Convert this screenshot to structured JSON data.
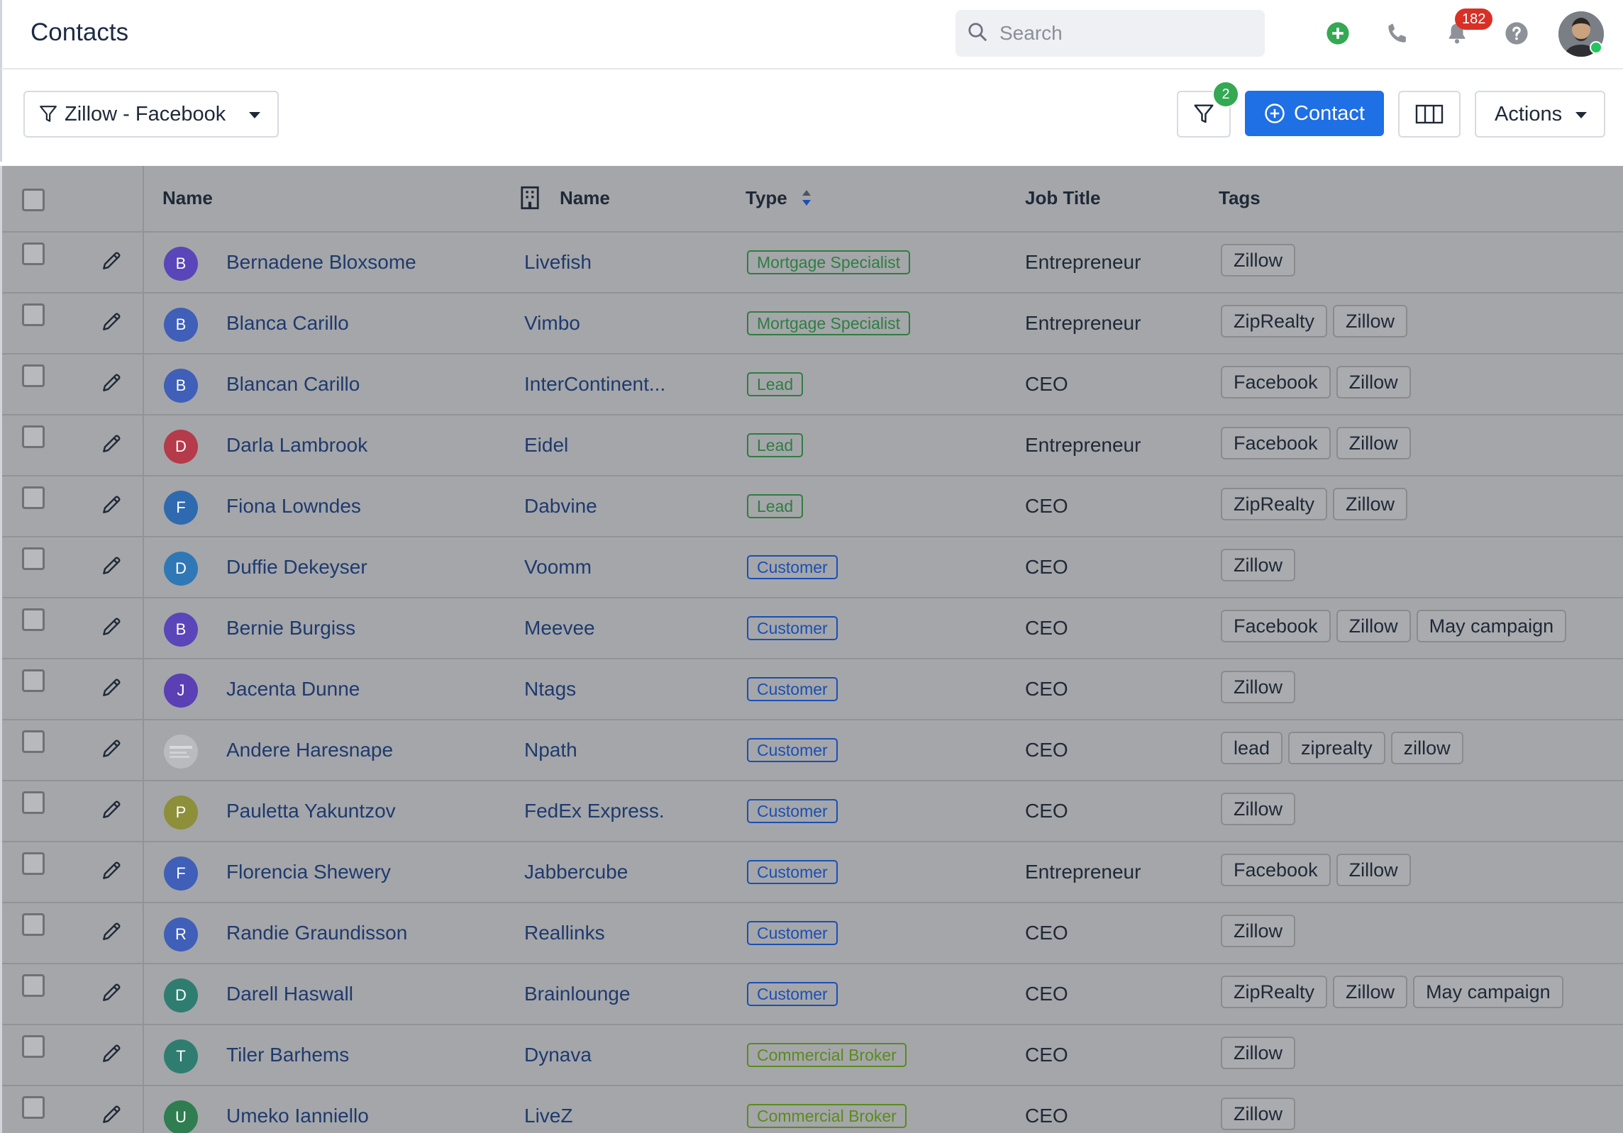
{
  "header": {
    "title": "Contacts",
    "search_placeholder": "Search",
    "notification_count": "182",
    "icons": [
      "add-circle-icon",
      "phone-icon",
      "bell-icon",
      "help-icon"
    ]
  },
  "toolbar": {
    "view_label": "Zillow - Facebook",
    "filter_count": "2",
    "add_contact_label": "Contact",
    "actions_label": "Actions"
  },
  "columns": {
    "name": "Name",
    "company": "Name",
    "type": "Type",
    "job_title": "Job Title",
    "tags": "Tags"
  },
  "colors": {
    "accent": "#1f6fe5",
    "type_mortgage": "#2f7d43",
    "type_lead": "#2f7d43",
    "type_customer": "#1b4fb5",
    "type_commercial": "#5c8a1e"
  },
  "rows": [
    {
      "initial": "B",
      "avatar_color": "#5a46b8",
      "name": "Bernadene Bloxsome",
      "company": "Livefish",
      "type": "Mortgage Specialist",
      "type_kind": "mortgage",
      "job": "Entrepreneur",
      "tags": [
        "Zillow"
      ]
    },
    {
      "initial": "B",
      "avatar_color": "#3f5fb8",
      "name": "Blanca Carillo",
      "company": "Vimbo",
      "type": "Mortgage Specialist",
      "type_kind": "mortgage",
      "job": "Entrepreneur",
      "tags": [
        "ZipRealty",
        "Zillow"
      ]
    },
    {
      "initial": "B",
      "avatar_color": "#3f5fb8",
      "name": "Blancan Carillo",
      "company": "InterContinent...",
      "type": "Lead",
      "type_kind": "lead",
      "job": "CEO",
      "tags": [
        "Facebook",
        "Zillow"
      ]
    },
    {
      "initial": "D",
      "avatar_color": "#b53a4a",
      "name": "Darla Lambrook",
      "company": "Eidel",
      "type": "Lead",
      "type_kind": "lead",
      "job": "Entrepreneur",
      "tags": [
        "Facebook",
        "Zillow"
      ]
    },
    {
      "initial": "F",
      "avatar_color": "#2f6ab0",
      "name": "Fiona Lowndes",
      "company": "Dabvine",
      "type": "Lead",
      "type_kind": "lead",
      "job": "CEO",
      "tags": [
        "ZipRealty",
        "Zillow"
      ]
    },
    {
      "initial": "D",
      "avatar_color": "#2f78b5",
      "name": "Duffie Dekeyser",
      "company": "Voomm",
      "type": "Customer",
      "type_kind": "customer",
      "job": "CEO",
      "tags": [
        "Zillow"
      ]
    },
    {
      "initial": "B",
      "avatar_color": "#5a46b8",
      "name": "Bernie Burgiss",
      "company": "Meevee",
      "type": "Customer",
      "type_kind": "customer",
      "job": "CEO",
      "tags": [
        "Facebook",
        "Zillow",
        "May campaign"
      ]
    },
    {
      "initial": "J",
      "avatar_color": "#5a3fb5",
      "name": "Jacenta Dunne",
      "company": "Ntags",
      "type": "Customer",
      "type_kind": "customer",
      "job": "CEO",
      "tags": [
        "Zillow"
      ]
    },
    {
      "initial": "",
      "avatar_color": "#b9bbbe",
      "name": "Andere Haresnape",
      "company": "Npath",
      "type": "Customer",
      "type_kind": "customer",
      "job": "CEO",
      "tags": [
        "lead",
        "ziprealty",
        "zillow"
      ]
    },
    {
      "initial": "P",
      "avatar_color": "#8d8f3a",
      "name": "Pauletta Yakuntzov",
      "company": "FedEx Express.",
      "type": "Customer",
      "type_kind": "customer",
      "job": "CEO",
      "tags": [
        "Zillow"
      ]
    },
    {
      "initial": "F",
      "avatar_color": "#3f5fb8",
      "name": "Florencia Shewery",
      "company": "Jabbercube",
      "type": "Customer",
      "type_kind": "customer",
      "job": "Entrepreneur",
      "tags": [
        "Facebook",
        "Zillow"
      ]
    },
    {
      "initial": "R",
      "avatar_color": "#3f5fb8",
      "name": "Randie Graundisson",
      "company": "Reallinks",
      "type": "Customer",
      "type_kind": "customer",
      "job": "CEO",
      "tags": [
        "Zillow"
      ]
    },
    {
      "initial": "D",
      "avatar_color": "#2f7d70",
      "name": "Darell Haswall",
      "company": "Brainlounge",
      "type": "Customer",
      "type_kind": "customer",
      "job": "CEO",
      "tags": [
        "ZipRealty",
        "Zillow",
        "May campaign"
      ]
    },
    {
      "initial": "T",
      "avatar_color": "#2f7d70",
      "name": "Tiler Barhems",
      "company": "Dynava",
      "type": "Commercial Broker",
      "type_kind": "commercial",
      "job": "CEO",
      "tags": [
        "Zillow"
      ]
    },
    {
      "initial": "U",
      "avatar_color": "#2f7d50",
      "name": "Umeko Ianniello",
      "company": "LiveZ",
      "type": "Commercial Broker",
      "type_kind": "commercial",
      "job": "CEO",
      "tags": [
        "Zillow"
      ]
    }
  ]
}
